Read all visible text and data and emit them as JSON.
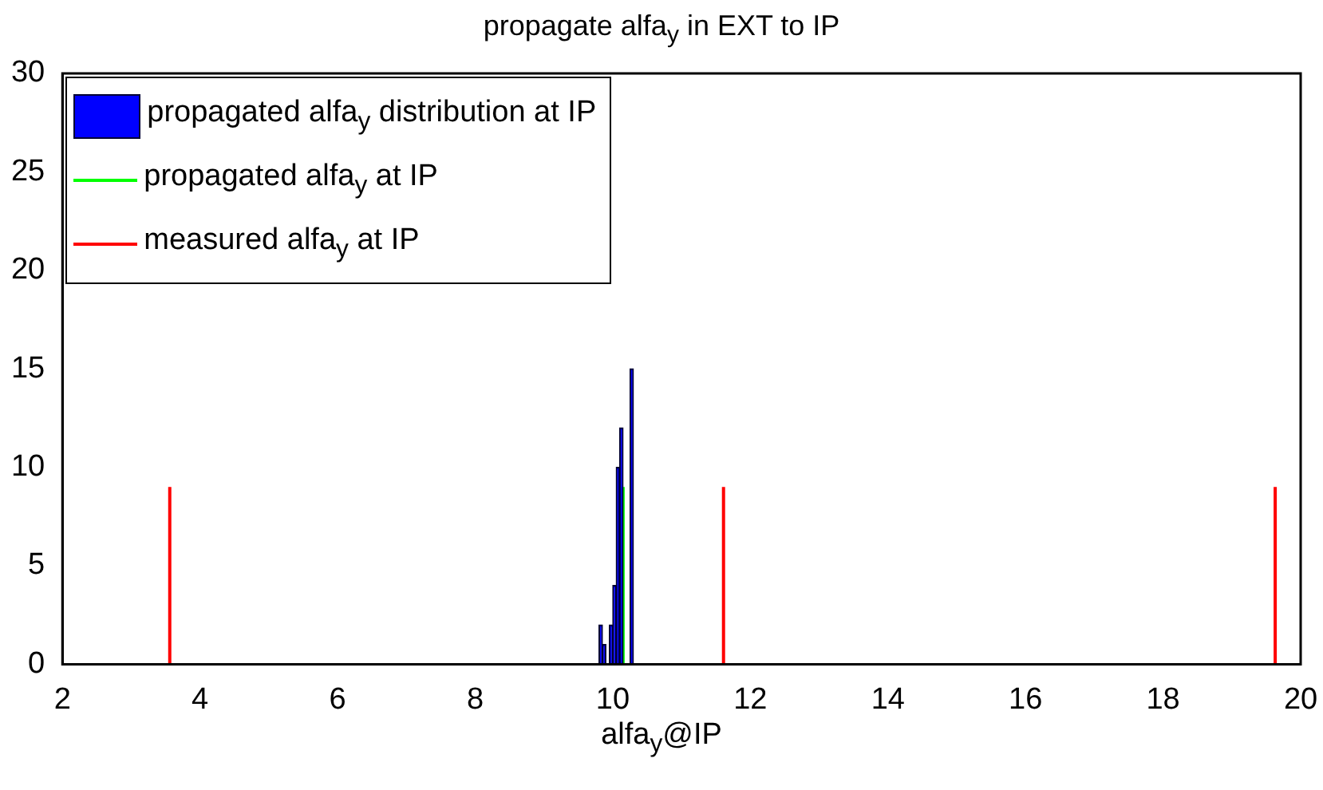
{
  "chart_data": {
    "type": "histogram",
    "title": "propagate alfa$_{y}$ in EXT to IP",
    "xlabel": "alfa$_{y}$@IP",
    "bins": [
      9.8,
      9.85,
      9.9,
      9.95,
      10.0,
      10.05,
      10.1,
      10.15,
      10.2,
      10.25,
      10.3
    ],
    "series": [
      {
        "name": "propagated alfa$_{y}$ distribution at IP",
        "color": "#0000ff",
        "values": [
          2,
          1,
          0,
          2,
          4,
          10,
          12,
          null,
          null,
          15
        ]
      },
      {
        "type": "line",
        "name": "propagated alfa$_{y}$ at IP",
        "color": "#00ff00",
        "x": [
          10.15,
          10.15
        ],
        "values": [
          0,
          9
        ]
      },
      {
        "type": "line",
        "name": "measured alfa$_{y}$ at IP",
        "color": "#ff0000",
        "x": [
          3.56,
          3.56,
          null,
          11.61,
          11.61,
          null,
          19.63,
          19.63
        ],
        "values": [
          0,
          9,
          null,
          0,
          9,
          null,
          0,
          9
        ]
      }
    ],
    "xlim": [
      2,
      20
    ],
    "xticks": [
      2,
      4,
      6,
      8,
      10,
      12,
      14,
      16,
      18,
      20
    ],
    "ylim": [
      0,
      30
    ],
    "yticks": [
      0,
      5,
      10,
      15,
      20,
      25,
      30
    ],
    "grid": false,
    "legend": "top left"
  }
}
